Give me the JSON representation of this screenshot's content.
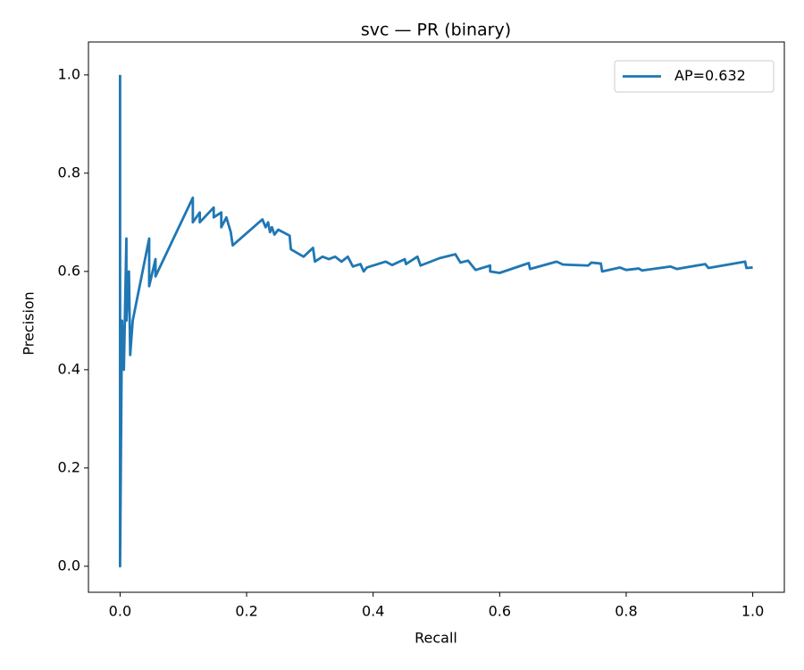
{
  "chart_data": {
    "type": "line",
    "title": "svc — PR (binary)",
    "x_label": "Recall",
    "y_label": "Precision",
    "xlim": [
      -0.05,
      1.05
    ],
    "ylim": [
      -0.053,
      1.067
    ],
    "xticks": [
      {
        "value": 0,
        "label": "0.0"
      },
      {
        "value": 0.2,
        "label": "0.2"
      },
      {
        "value": 0.4,
        "label": "0.4"
      },
      {
        "value": 0.6,
        "label": "0.6"
      },
      {
        "value": 0.8,
        "label": "0.8"
      },
      {
        "value": 1,
        "label": "1.0"
      }
    ],
    "yticks": [
      {
        "value": 0,
        "label": "0.0"
      },
      {
        "value": 0.2,
        "label": "0.2"
      },
      {
        "value": 0.4,
        "label": "0.4"
      },
      {
        "value": 0.6,
        "label": "0.6"
      },
      {
        "value": 0.8,
        "label": "0.8"
      },
      {
        "value": 1,
        "label": "1.0"
      }
    ],
    "legend": "upper right",
    "series": [
      {
        "name": "AP=0.632",
        "color": "#1f77b4",
        "x": [
          0,
          0,
          0.003,
          0.006,
          0.01,
          0.01,
          0.014,
          0.016,
          0.02,
          0.046,
          0.046,
          0.056,
          0.056,
          0.115,
          0.115,
          0.126,
          0.126,
          0.148,
          0.148,
          0.16,
          0.16,
          0.168,
          0.175,
          0.178,
          0.225,
          0.23,
          0.234,
          0.237,
          0.24,
          0.244,
          0.25,
          0.268,
          0.27,
          0.29,
          0.305,
          0.308,
          0.32,
          0.33,
          0.34,
          0.35,
          0.36,
          0.368,
          0.38,
          0.385,
          0.39,
          0.42,
          0.43,
          0.45,
          0.452,
          0.47,
          0.475,
          0.505,
          0.53,
          0.538,
          0.55,
          0.562,
          0.585,
          0.585,
          0.6,
          0.646,
          0.648,
          0.69,
          0.7,
          0.74,
          0.745,
          0.76,
          0.762,
          0.79,
          0.8,
          0.82,
          0.825,
          0.87,
          0.88,
          0.925,
          0.93,
          0.988,
          0.99,
          1.0
        ],
        "values": [
          1.0,
          0.0,
          0.5,
          0.4,
          0.667,
          0.5,
          0.6,
          0.43,
          0.5,
          0.667,
          0.57,
          0.625,
          0.59,
          0.75,
          0.7,
          0.72,
          0.7,
          0.73,
          0.71,
          0.72,
          0.69,
          0.71,
          0.68,
          0.653,
          0.706,
          0.69,
          0.7,
          0.68,
          0.69,
          0.675,
          0.685,
          0.673,
          0.645,
          0.63,
          0.648,
          0.62,
          0.63,
          0.625,
          0.63,
          0.62,
          0.63,
          0.61,
          0.615,
          0.6,
          0.608,
          0.62,
          0.613,
          0.625,
          0.615,
          0.63,
          0.612,
          0.627,
          0.635,
          0.618,
          0.622,
          0.603,
          0.612,
          0.6,
          0.597,
          0.617,
          0.605,
          0.62,
          0.614,
          0.612,
          0.618,
          0.616,
          0.6,
          0.608,
          0.603,
          0.606,
          0.602,
          0.61,
          0.605,
          0.615,
          0.607,
          0.62,
          0.607,
          0.608
        ]
      }
    ]
  }
}
